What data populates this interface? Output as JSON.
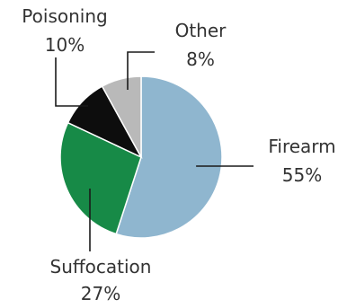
{
  "chart_data": {
    "type": "pie",
    "title": "",
    "legend": "none",
    "slices": [
      {
        "name": "Firearm",
        "value": 55,
        "value_label": "55%",
        "color": "#8fb6cf"
      },
      {
        "name": "Suffocation",
        "value": 27,
        "value_label": "27%",
        "color": "#178a47"
      },
      {
        "name": "Poisoning",
        "value": 10,
        "value_label": "10%",
        "color": "#0d0d0d"
      },
      {
        "name": "Other",
        "value": 8,
        "value_label": "8%",
        "color": "#b9b9b9"
      }
    ]
  }
}
